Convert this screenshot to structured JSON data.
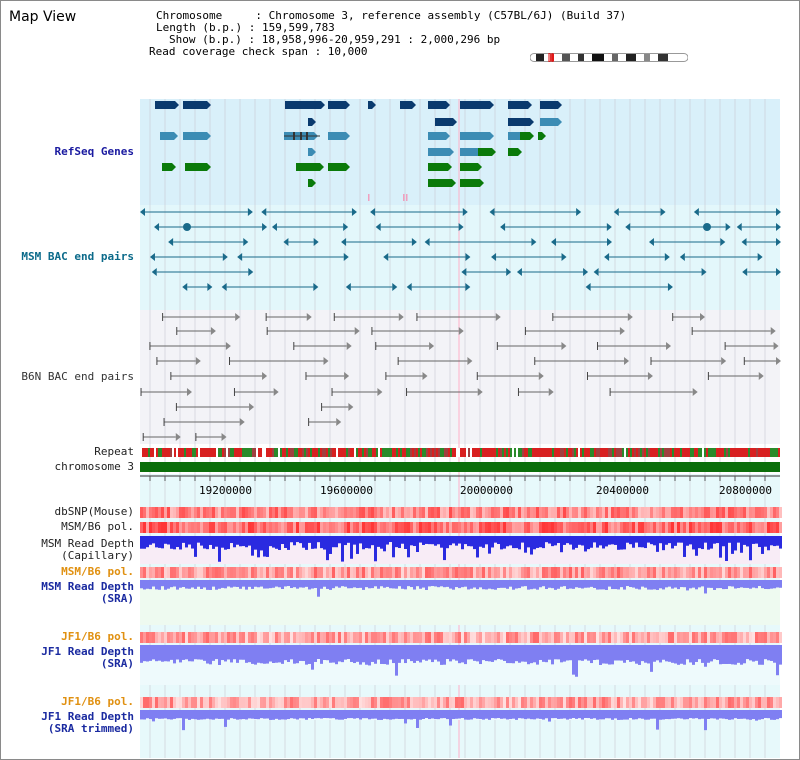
{
  "title": "Map View",
  "info": {
    "chromosome": "Chromosome     : Chromosome 3, reference assembly (C57BL/6J) (Build 37)",
    "length": "Length (b.p.) : 159,599,783",
    "show": "Show (b.p.) : 18,958,996-20,959,291 : 2,000,296 bp",
    "coverage": "Read coverage check span : 10,000"
  },
  "tracks": {
    "refseq": "RefSeq Genes",
    "msm_bac": "MSM BAC end pairs",
    "b6n_bac": "B6N BAC end pairs",
    "repeat": "Repeat",
    "chromosome": "chromosome 3",
    "dbsnp": "dbSNP(Mouse)",
    "msm_b6_pol": "MSM/B6 pol.",
    "msm_depth_cap_1": "MSM Read Depth",
    "msm_depth_cap_2": "(Capillary)",
    "msm_b6_pol_2": "MSM/B6 pol.",
    "msm_depth_sra_1": "MSM Read Depth",
    "msm_depth_sra_2": "(SRA)",
    "jf1_b6_pol": "JF1/B6 pol.",
    "jf1_depth_sra_1": "JF1 Read Depth",
    "jf1_depth_sra_2": "(SRA)",
    "jf1_b6_pol_2": "JF1/B6 pol.",
    "jf1_depth_trim_1": "JF1 Read Depth",
    "jf1_depth_trim_2": "(SRA trimmed)"
  },
  "axis": {
    "ticks": [
      "19200000",
      "19600000",
      "20000000",
      "20400000",
      "20800000"
    ]
  },
  "colors": {
    "refseq_bg": "#d9f0fa",
    "msm_bg": "#e3f7fb",
    "b6n_bg": "#f3f3f7",
    "lower_bg": "#e7f9fb",
    "depth_blue": "#2a2ae0",
    "depth_light": "#7f7ff2",
    "chrom_green": "#0a6e0a",
    "gene_dark": "#0a3a6e",
    "gene_mid": "#3c8cb4",
    "gene_green": "#0a7a0a"
  }
}
